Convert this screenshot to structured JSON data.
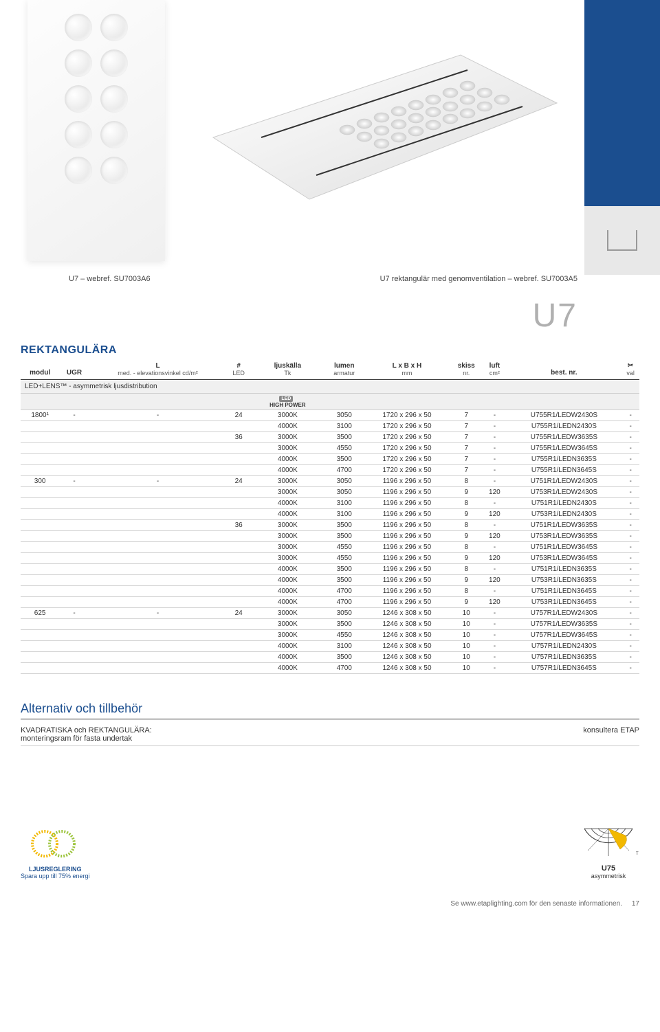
{
  "hero": {
    "caption_left": "U7 – webref. SU7003A6",
    "caption_right": "U7 rektangulär med genomventilation – webref. SU7003A5"
  },
  "big_code": "U7",
  "section_title": "REKTANGULÄRA",
  "table": {
    "columns": [
      {
        "label": "modul",
        "sub": ""
      },
      {
        "label": "UGR",
        "sub": ""
      },
      {
        "label": "L",
        "sub": "med. - elevationsvinkel cd/m²"
      },
      {
        "label": "#",
        "sub": "LED"
      },
      {
        "label": "ljuskälla",
        "sub": "Tk"
      },
      {
        "label": "lumen",
        "sub": "armatur"
      },
      {
        "label": "L x B x H",
        "sub": "mm"
      },
      {
        "label": "skiss",
        "sub": "nr."
      },
      {
        "label": "luft",
        "sub": "cm²"
      },
      {
        "label": "best. nr.",
        "sub": ""
      },
      {
        "label": "✂",
        "sub": "val"
      }
    ],
    "distro_label": "LED+LENS™ - asymmetrisk ljusdistribution",
    "hp_label": "HIGH POWER",
    "rows": [
      [
        "1800¹",
        "-",
        "-",
        "24",
        "3000K",
        "3050",
        "1720 x 296 x 50",
        "7",
        "-",
        "U755R1/LEDW2430S",
        "-"
      ],
      [
        "",
        "",
        "",
        "",
        "4000K",
        "3100",
        "1720 x 296 x 50",
        "7",
        "-",
        "U755R1/LEDN2430S",
        "-"
      ],
      [
        "",
        "",
        "",
        "36",
        "3000K",
        "3500",
        "1720 x 296 x 50",
        "7",
        "-",
        "U755R1/LEDW3635S",
        "-"
      ],
      [
        "",
        "",
        "",
        "",
        "3000K",
        "4550",
        "1720 x 296 x 50",
        "7",
        "-",
        "U755R1/LEDW3645S",
        "-"
      ],
      [
        "",
        "",
        "",
        "",
        "4000K",
        "3500",
        "1720 x 296 x 50",
        "7",
        "-",
        "U755R1/LEDN3635S",
        "-"
      ],
      [
        "",
        "",
        "",
        "",
        "4000K",
        "4700",
        "1720 x 296 x 50",
        "7",
        "-",
        "U755R1/LEDN3645S",
        "-"
      ],
      [
        "300",
        "-",
        "-",
        "24",
        "3000K",
        "3050",
        "1196 x 296 x 50",
        "8",
        "-",
        "U751R1/LEDW2430S",
        "-"
      ],
      [
        "",
        "",
        "",
        "",
        "3000K",
        "3050",
        "1196 x 296 x 50",
        "9",
        "120",
        "U753R1/LEDW2430S",
        "-"
      ],
      [
        "",
        "",
        "",
        "",
        "4000K",
        "3100",
        "1196 x 296 x 50",
        "8",
        "-",
        "U751R1/LEDN2430S",
        "-"
      ],
      [
        "",
        "",
        "",
        "",
        "4000K",
        "3100",
        "1196 x 296 x 50",
        "9",
        "120",
        "U753R1/LEDN2430S",
        "-"
      ],
      [
        "",
        "",
        "",
        "36",
        "3000K",
        "3500",
        "1196 x 296 x 50",
        "8",
        "-",
        "U751R1/LEDW3635S",
        "-"
      ],
      [
        "",
        "",
        "",
        "",
        "3000K",
        "3500",
        "1196 x 296 x 50",
        "9",
        "120",
        "U753R1/LEDW3635S",
        "-"
      ],
      [
        "",
        "",
        "",
        "",
        "3000K",
        "4550",
        "1196 x 296 x 50",
        "8",
        "-",
        "U751R1/LEDW3645S",
        "-"
      ],
      [
        "",
        "",
        "",
        "",
        "3000K",
        "4550",
        "1196 x 296 x 50",
        "9",
        "120",
        "U753R1/LEDW3645S",
        "-"
      ],
      [
        "",
        "",
        "",
        "",
        "4000K",
        "3500",
        "1196 x 296 x 50",
        "8",
        "-",
        "U751R1/LEDN3635S",
        "-"
      ],
      [
        "",
        "",
        "",
        "",
        "4000K",
        "3500",
        "1196 x 296 x 50",
        "9",
        "120",
        "U753R1/LEDN3635S",
        "-"
      ],
      [
        "",
        "",
        "",
        "",
        "4000K",
        "4700",
        "1196 x 296 x 50",
        "8",
        "-",
        "U751R1/LEDN3645S",
        "-"
      ],
      [
        "",
        "",
        "",
        "",
        "4000K",
        "4700",
        "1196 x 296 x 50",
        "9",
        "120",
        "U753R1/LEDN3645S",
        "-"
      ],
      [
        "625",
        "-",
        "-",
        "24",
        "3000K",
        "3050",
        "1246 x 308 x 50",
        "10",
        "-",
        "U757R1/LEDW2430S",
        "-"
      ],
      [
        "",
        "",
        "",
        "",
        "3000K",
        "3500",
        "1246 x 308 x 50",
        "10",
        "-",
        "U757R1/LEDW3635S",
        "-"
      ],
      [
        "",
        "",
        "",
        "",
        "3000K",
        "4550",
        "1246 x 308 x 50",
        "10",
        "-",
        "U757R1/LEDW3645S",
        "-"
      ],
      [
        "",
        "",
        "",
        "",
        "4000K",
        "3100",
        "1246 x 308 x 50",
        "10",
        "-",
        "U757R1/LEDN2430S",
        "-"
      ],
      [
        "",
        "",
        "",
        "",
        "4000K",
        "3500",
        "1246 x 308 x 50",
        "10",
        "-",
        "U757R1/LEDN3635S",
        "-"
      ],
      [
        "",
        "",
        "",
        "",
        "4000K",
        "4700",
        "1246 x 308 x 50",
        "10",
        "-",
        "U757R1/LEDN3645S",
        "-"
      ]
    ]
  },
  "alt": {
    "title": "Alternativ och tillbehör",
    "item_label": "KVADRATISKA och REKTANGULÄRA:\nmonteringsram för fasta undertak",
    "item_value": "konsultera ETAP"
  },
  "footer": {
    "left_title": "LJUSREGLERING",
    "left_sub": "Spara upp till 75% energi",
    "right_code": "U75",
    "right_sub": "asymmetrisk"
  },
  "page_foot": {
    "text": "Se www.etaplighting.com för den senaste informationen.",
    "page": "17"
  },
  "colors": {
    "brand_blue": "#1b4e8f",
    "accent_yellow": "#f2b800",
    "gray_text": "#b0b0b0"
  }
}
